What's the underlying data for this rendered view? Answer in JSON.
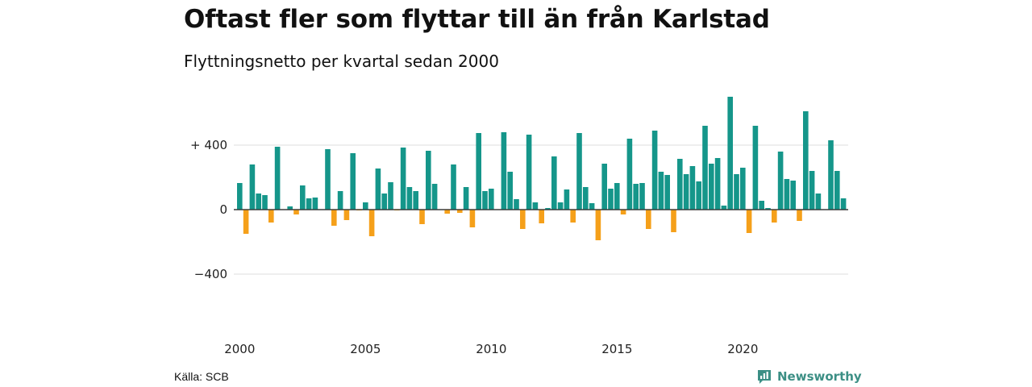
{
  "title": "Oftast fler som flyttar till än från Karlstad",
  "subtitle": "Flyttningsnetto per kvartal sedan 2000",
  "source": "Källa: SCB",
  "brand": {
    "name": "Newsworthy",
    "logo_icon": "newsworthy-bar-chart-icon",
    "color": "#3c8f85"
  },
  "chart_data": {
    "type": "bar",
    "colors": {
      "positive": "#15968a",
      "negative": "#f5a01a",
      "grid": "#dddddd",
      "baseline": "#333333"
    },
    "grid": true,
    "ylim": [
      -450,
      700
    ],
    "yticks": [
      {
        "value": 400,
        "label": "+ 400"
      },
      {
        "value": 0,
        "label": "0"
      },
      {
        "value": -400,
        "label": "−400"
      }
    ],
    "xticks": [
      {
        "value": 2000,
        "label": "2000"
      },
      {
        "value": 2005,
        "label": "2005"
      },
      {
        "value": 2010,
        "label": "2010"
      },
      {
        "value": 2015,
        "label": "2015"
      },
      {
        "value": 2020,
        "label": "2020"
      }
    ],
    "start": "2000 Q1",
    "values": [
      165,
      -150,
      280,
      100,
      90,
      -80,
      390,
      0,
      20,
      -30,
      150,
      70,
      75,
      0,
      375,
      -100,
      115,
      -65,
      350,
      -5,
      45,
      -165,
      255,
      100,
      170,
      -5,
      385,
      140,
      115,
      -90,
      365,
      160,
      0,
      -25,
      280,
      -20,
      140,
      -110,
      475,
      115,
      130,
      0,
      480,
      235,
      65,
      -120,
      465,
      45,
      -85,
      10,
      330,
      45,
      125,
      -80,
      475,
      140,
      40,
      -190,
      285,
      130,
      165,
      -30,
      440,
      160,
      165,
      -120,
      490,
      235,
      215,
      -140,
      315,
      220,
      270,
      175,
      520,
      285,
      320,
      25,
      700,
      220,
      260,
      -145,
      520,
      55,
      10,
      -80,
      360,
      190,
      180,
      -70,
      610,
      240,
      100,
      0,
      430,
      240,
      70
    ]
  }
}
